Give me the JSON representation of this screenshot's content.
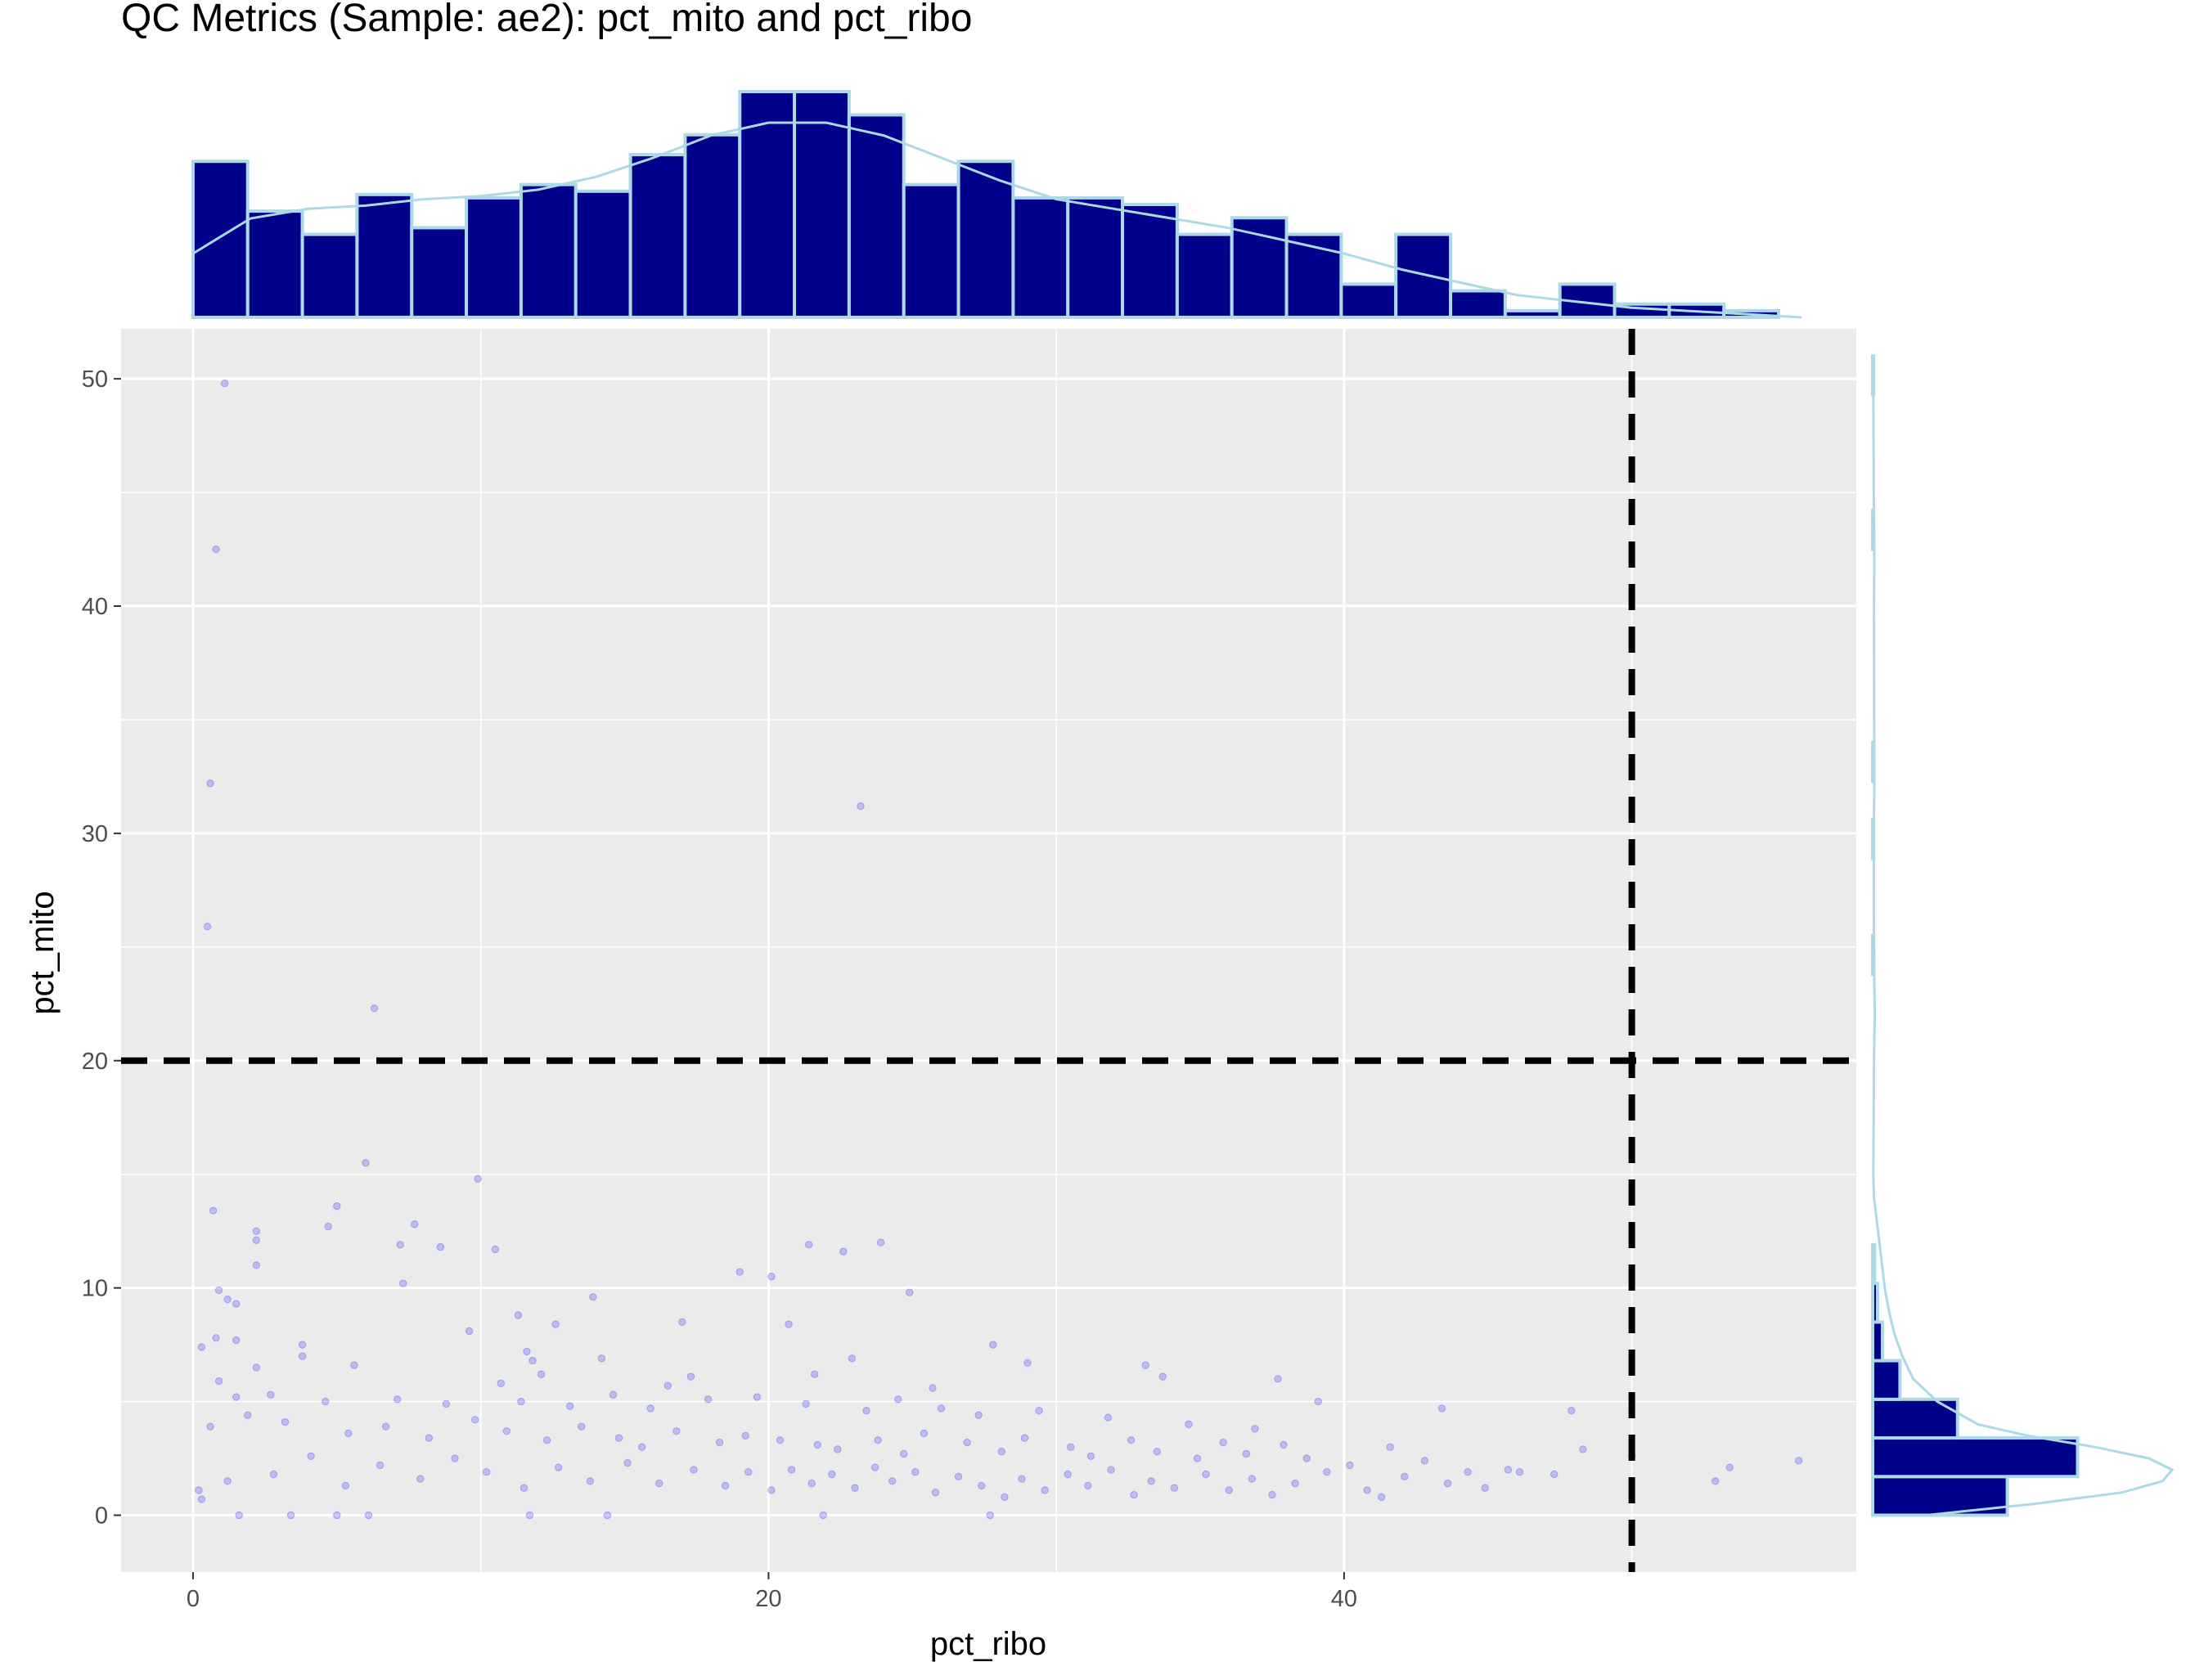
{
  "chart_data": {
    "type": "scatter",
    "title": "QC Metrics (Sample: ae2): pct_mito and pct_ribo",
    "xlabel": "pct_ribo",
    "ylabel": "pct_mito",
    "xlim": [
      -2.5,
      57.8
    ],
    "ylim": [
      -2.5,
      52.2
    ],
    "xticks": [
      {
        "value": 0,
        "label": "0"
      },
      {
        "value": 20,
        "label": "20"
      },
      {
        "value": 40,
        "label": "40"
      }
    ],
    "yticks": [
      {
        "value": 0,
        "label": "0"
      },
      {
        "value": 10,
        "label": "10"
      },
      {
        "value": 20,
        "label": "20"
      },
      {
        "value": 30,
        "label": "30"
      },
      {
        "value": 40,
        "label": "40"
      },
      {
        "value": 50,
        "label": "50"
      }
    ],
    "grid": true,
    "thresholds": {
      "pct_ribo": 50,
      "pct_mito": 20
    },
    "colors": {
      "points": "#0000ff",
      "bar_fill": "#00008b",
      "bar_edge": "#add8e6",
      "density": "#add8e6",
      "panel": "#ebebeb",
      "threshold": "#000000"
    },
    "points": [
      [
        1.1,
        49.8
      ],
      [
        0.8,
        42.5
      ],
      [
        0.6,
        32.2
      ],
      [
        23.2,
        31.2
      ],
      [
        0.5,
        25.9
      ],
      [
        6.3,
        22.3
      ],
      [
        6.0,
        15.5
      ],
      [
        9.9,
        14.8
      ],
      [
        0.7,
        13.4
      ],
      [
        5.0,
        13.6
      ],
      [
        2.2,
        12.5
      ],
      [
        4.7,
        12.7
      ],
      [
        7.7,
        12.8
      ],
      [
        2.2,
        12.1
      ],
      [
        7.2,
        11.9
      ],
      [
        8.6,
        11.8
      ],
      [
        10.5,
        11.7
      ],
      [
        21.4,
        11.9
      ],
      [
        22.6,
        11.6
      ],
      [
        23.9,
        12.0
      ],
      [
        2.2,
        11.0
      ],
      [
        7.3,
        10.2
      ],
      [
        19.0,
        10.7
      ],
      [
        20.1,
        10.5
      ],
      [
        0.9,
        9.9
      ],
      [
        1.2,
        9.5
      ],
      [
        13.9,
        9.6
      ],
      [
        24.9,
        9.8
      ],
      [
        1.5,
        9.3
      ],
      [
        11.3,
        8.8
      ],
      [
        12.6,
        8.4
      ],
      [
        17.0,
        8.5
      ],
      [
        20.7,
        8.4
      ],
      [
        9.6,
        8.1
      ],
      [
        0.8,
        7.8
      ],
      [
        1.5,
        7.7
      ],
      [
        0.3,
        7.4
      ],
      [
        3.8,
        7.5
      ],
      [
        11.6,
        7.2
      ],
      [
        27.8,
        7.5
      ],
      [
        3.8,
        7.0
      ],
      [
        11.8,
        6.8
      ],
      [
        14.2,
        6.9
      ],
      [
        22.9,
        6.9
      ],
      [
        29.0,
        6.7
      ],
      [
        33.1,
        6.6
      ],
      [
        2.2,
        6.5
      ],
      [
        5.6,
        6.6
      ],
      [
        12.1,
        6.2
      ],
      [
        17.3,
        6.1
      ],
      [
        21.6,
        6.2
      ],
      [
        0.9,
        5.9
      ],
      [
        10.7,
        5.8
      ],
      [
        16.5,
        5.7
      ],
      [
        25.7,
        5.6
      ],
      [
        33.7,
        6.1
      ],
      [
        37.7,
        6.0
      ],
      [
        1.5,
        5.2
      ],
      [
        2.7,
        5.3
      ],
      [
        4.6,
        5.0
      ],
      [
        7.1,
        5.1
      ],
      [
        8.8,
        4.9
      ],
      [
        11.4,
        5.0
      ],
      [
        13.1,
        4.8
      ],
      [
        14.6,
        5.3
      ],
      [
        15.9,
        4.7
      ],
      [
        17.9,
        5.1
      ],
      [
        19.6,
        5.2
      ],
      [
        21.3,
        4.9
      ],
      [
        23.4,
        4.6
      ],
      [
        24.5,
        5.1
      ],
      [
        26.0,
        4.7
      ],
      [
        27.3,
        4.4
      ],
      [
        29.4,
        4.6
      ],
      [
        31.8,
        4.3
      ],
      [
        34.6,
        4.0
      ],
      [
        36.9,
        3.8
      ],
      [
        39.1,
        5.0
      ],
      [
        43.4,
        4.7
      ],
      [
        47.9,
        4.6
      ],
      [
        0.6,
        3.9
      ],
      [
        1.9,
        4.4
      ],
      [
        3.2,
        4.1
      ],
      [
        5.4,
        3.6
      ],
      [
        6.7,
        3.9
      ],
      [
        8.2,
        3.4
      ],
      [
        9.8,
        4.2
      ],
      [
        10.9,
        3.7
      ],
      [
        12.3,
        3.3
      ],
      [
        13.5,
        3.9
      ],
      [
        14.8,
        3.4
      ],
      [
        15.6,
        3.0
      ],
      [
        16.8,
        3.7
      ],
      [
        18.3,
        3.2
      ],
      [
        19.2,
        3.5
      ],
      [
        20.4,
        3.3
      ],
      [
        21.7,
        3.1
      ],
      [
        22.4,
        2.9
      ],
      [
        23.8,
        3.3
      ],
      [
        24.7,
        2.7
      ],
      [
        25.4,
        3.6
      ],
      [
        26.9,
        3.2
      ],
      [
        28.1,
        2.8
      ],
      [
        28.9,
        3.4
      ],
      [
        30.5,
        3.0
      ],
      [
        31.2,
        2.6
      ],
      [
        32.6,
        3.3
      ],
      [
        33.5,
        2.8
      ],
      [
        34.9,
        2.5
      ],
      [
        35.8,
        3.2
      ],
      [
        36.6,
        2.7
      ],
      [
        37.9,
        3.1
      ],
      [
        38.7,
        2.5
      ],
      [
        40.2,
        2.2
      ],
      [
        41.6,
        3.0
      ],
      [
        42.8,
        2.4
      ],
      [
        44.3,
        1.9
      ],
      [
        45.7,
        2.0
      ],
      [
        48.3,
        2.9
      ],
      [
        50.0,
        2.6
      ],
      [
        53.4,
        2.1
      ],
      [
        55.8,
        2.4
      ],
      [
        0.2,
        1.1
      ],
      [
        0.3,
        0.7
      ],
      [
        1.6,
        0.0
      ],
      [
        3.4,
        0.0
      ],
      [
        5.0,
        0.0
      ],
      [
        6.1,
        0.0
      ],
      [
        11.7,
        0.0
      ],
      [
        14.4,
        0.0
      ],
      [
        21.9,
        0.0
      ],
      [
        27.7,
        0.0
      ],
      [
        1.2,
        1.5
      ],
      [
        2.8,
        1.8
      ],
      [
        4.1,
        2.6
      ],
      [
        5.3,
        1.3
      ],
      [
        6.5,
        2.2
      ],
      [
        7.9,
        1.6
      ],
      [
        9.1,
        2.5
      ],
      [
        10.2,
        1.9
      ],
      [
        11.5,
        1.2
      ],
      [
        12.7,
        2.1
      ],
      [
        13.8,
        1.5
      ],
      [
        15.1,
        2.3
      ],
      [
        16.2,
        1.4
      ],
      [
        17.4,
        2.0
      ],
      [
        18.5,
        1.3
      ],
      [
        19.3,
        1.9
      ],
      [
        20.1,
        1.1
      ],
      [
        20.8,
        2.0
      ],
      [
        21.5,
        1.4
      ],
      [
        22.2,
        1.8
      ],
      [
        23.0,
        1.2
      ],
      [
        23.7,
        2.1
      ],
      [
        24.3,
        1.5
      ],
      [
        25.1,
        1.9
      ],
      [
        25.8,
        1.0
      ],
      [
        26.6,
        1.7
      ],
      [
        27.4,
        1.3
      ],
      [
        28.2,
        0.8
      ],
      [
        28.8,
        1.6
      ],
      [
        29.6,
        1.1
      ],
      [
        30.4,
        1.8
      ],
      [
        31.1,
        1.3
      ],
      [
        31.9,
        2.0
      ],
      [
        32.7,
        0.9
      ],
      [
        33.3,
        1.5
      ],
      [
        34.1,
        1.2
      ],
      [
        35.2,
        1.8
      ],
      [
        36.0,
        1.1
      ],
      [
        36.8,
        1.6
      ],
      [
        37.5,
        0.9
      ],
      [
        38.3,
        1.4
      ],
      [
        39.4,
        1.9
      ],
      [
        40.8,
        1.1
      ],
      [
        41.3,
        0.8
      ],
      [
        42.1,
        1.7
      ],
      [
        43.6,
        1.4
      ],
      [
        44.9,
        1.2
      ],
      [
        46.1,
        1.9
      ],
      [
        47.3,
        1.8
      ],
      [
        52.9,
        1.5
      ]
    ],
    "top_histogram": {
      "variable": "pct_ribo",
      "bin_width": 1.9,
      "start": 0.0,
      "counts": [
        47,
        32,
        25,
        37,
        27,
        36,
        40,
        38,
        49,
        55,
        68,
        68,
        61,
        40,
        47,
        36,
        36,
        34,
        25,
        30,
        25,
        10,
        25,
        8,
        2,
        10,
        4,
        4,
        2
      ],
      "density": [
        [
          0,
          20
        ],
        [
          2,
          31
        ],
        [
          4,
          34
        ],
        [
          6,
          35
        ],
        [
          8,
          37
        ],
        [
          10,
          38
        ],
        [
          12,
          40
        ],
        [
          14,
          44
        ],
        [
          16,
          50
        ],
        [
          18,
          57
        ],
        [
          20,
          61
        ],
        [
          22,
          61
        ],
        [
          24,
          57
        ],
        [
          26,
          50
        ],
        [
          28,
          43
        ],
        [
          30,
          37
        ],
        [
          32,
          34
        ],
        [
          34,
          31
        ],
        [
          36,
          28
        ],
        [
          38,
          24
        ],
        [
          40,
          20
        ],
        [
          42,
          15
        ],
        [
          44,
          11
        ],
        [
          46,
          7
        ],
        [
          48,
          5
        ],
        [
          50,
          3
        ],
        [
          52,
          2
        ],
        [
          54,
          1
        ],
        [
          55.9,
          0
        ]
      ]
    },
    "right_histogram": {
      "variable": "pct_mito",
      "bin_width": 1.7,
      "start": 0.0,
      "counts": [
        138,
        210,
        87,
        28,
        10,
        5,
        2,
        0,
        0,
        0,
        0,
        0,
        0,
        0,
        1,
        0,
        0,
        1,
        0,
        1,
        0,
        0,
        0,
        0,
        0,
        1,
        0,
        0,
        0,
        1
      ],
      "density": [
        [
          0,
          40
        ],
        [
          0.5,
          120
        ],
        [
          1,
          185
        ],
        [
          1.5,
          215
        ],
        [
          2,
          222
        ],
        [
          2.5,
          205
        ],
        [
          3,
          165
        ],
        [
          3.5,
          115
        ],
        [
          4,
          78
        ],
        [
          5,
          48
        ],
        [
          6,
          30
        ],
        [
          7,
          22
        ],
        [
          8,
          16
        ],
        [
          9,
          12
        ],
        [
          10,
          9
        ],
        [
          11,
          7
        ],
        [
          12,
          5
        ],
        [
          13,
          3
        ],
        [
          14,
          1
        ],
        [
          15,
          0.5
        ],
        [
          20,
          1
        ],
        [
          22,
          1.5
        ],
        [
          25,
          1
        ],
        [
          30,
          0.8
        ],
        [
          32,
          1.2
        ],
        [
          40,
          1
        ],
        [
          42,
          1.2
        ],
        [
          45,
          0.8
        ],
        [
          49.8,
          0.5
        ]
      ]
    }
  }
}
